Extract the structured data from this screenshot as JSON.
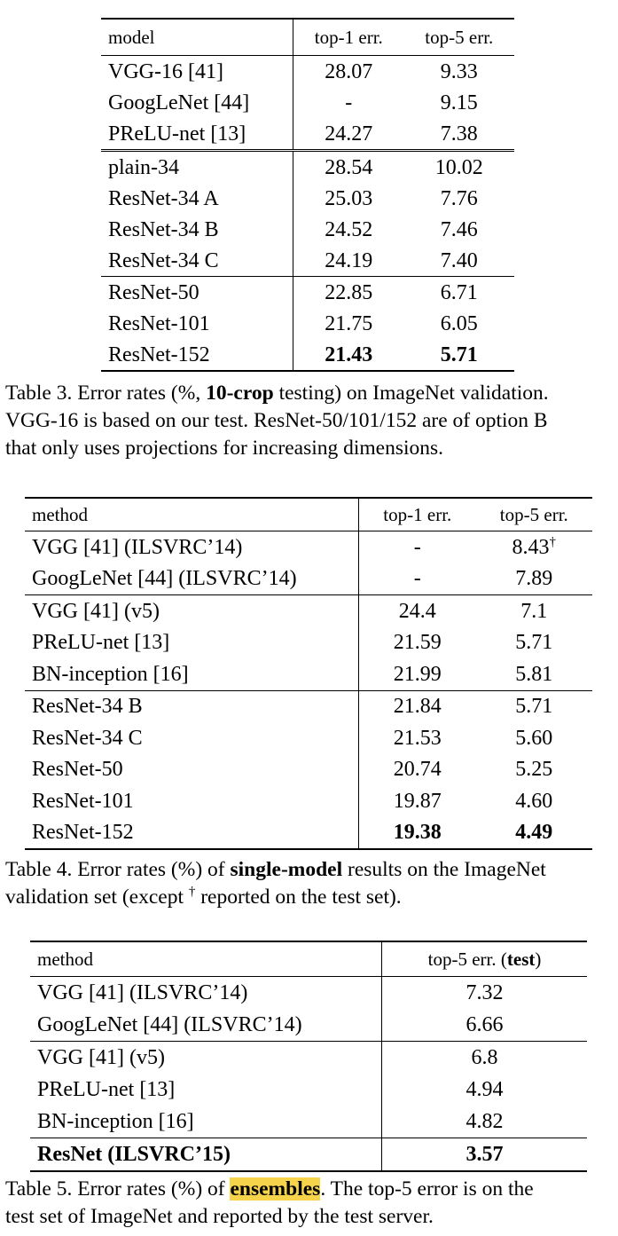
{
  "table3": {
    "headers": [
      "model",
      "top-1 err.",
      "top-5 err."
    ],
    "rows": [
      [
        "VGG-16 [41]",
        "28.07",
        "9.33"
      ],
      [
        "GoogLeNet [44]",
        "-",
        "9.15"
      ],
      [
        "PReLU-net [13]",
        "24.27",
        "7.38"
      ],
      [
        "plain-34",
        "28.54",
        "10.02"
      ],
      [
        "ResNet-34 A",
        "25.03",
        "7.76"
      ],
      [
        "ResNet-34 B",
        "24.52",
        "7.46"
      ],
      [
        "ResNet-34 C",
        "24.19",
        "7.40"
      ],
      [
        "ResNet-50",
        "22.85",
        "6.71"
      ],
      [
        "ResNet-101",
        "21.75",
        "6.05"
      ],
      [
        "ResNet-152",
        "21.43",
        "5.71"
      ]
    ],
    "caption": {
      "label": "Table 3.",
      "part1": "Error rates (%,",
      "bold": "10-crop",
      "part2": "testing) on ImageNet validation.",
      "line2": "VGG-16 is based on our test. ResNet-50/101/152 are of option B",
      "line3": "that only uses projections for increasing dimensions."
    }
  },
  "table4": {
    "headers": [
      "method",
      "top-1 err.",
      "top-5 err."
    ],
    "rows": [
      [
        "VGG [41] (ILSVRC’14)",
        "-",
        "8.43"
      ],
      [
        "GoogLeNet [44] (ILSVRC’14)",
        "-",
        "7.89"
      ],
      [
        "VGG [41] (v5)",
        "24.4",
        "7.1"
      ],
      [
        "PReLU-net [13]",
        "21.59",
        "5.71"
      ],
      [
        "BN-inception [16]",
        "21.99",
        "5.81"
      ],
      [
        "ResNet-34 B",
        "21.84",
        "5.71"
      ],
      [
        "ResNet-34 C",
        "21.53",
        "5.60"
      ],
      [
        "ResNet-50",
        "20.74",
        "5.25"
      ],
      [
        "ResNet-101",
        "19.87",
        "4.60"
      ],
      [
        "ResNet-152",
        "19.38",
        "4.49"
      ]
    ],
    "dagger": "†",
    "caption": {
      "label": "Table 4.",
      "part1": "Error rates (%) of",
      "bold": "single-model",
      "part2": "results on the ImageNet",
      "line2a": "validation set (except",
      "dagger": "†",
      "line2b": "reported on the test set)."
    }
  },
  "table5": {
    "headers": [
      "method",
      "top-5 err.",
      "test"
    ],
    "rows": [
      [
        "VGG [41] (ILSVRC’14)",
        "7.32"
      ],
      [
        "GoogLeNet [44] (ILSVRC’14)",
        "6.66"
      ],
      [
        "VGG [41] (v5)",
        "6.8"
      ],
      [
        "PReLU-net [13]",
        "4.94"
      ],
      [
        "BN-inception [16]",
        "4.82"
      ],
      [
        "ResNet (ILSVRC’15)",
        "3.57"
      ]
    ],
    "caption": {
      "label": "Table 5.",
      "part1": "Error rates (%) of",
      "highlight": "ensembles",
      "part2": ". The top-5 error is on the",
      "line2": "test set of ImageNet and reported by the test server."
    }
  },
  "highlight_color": "#f5d44c"
}
